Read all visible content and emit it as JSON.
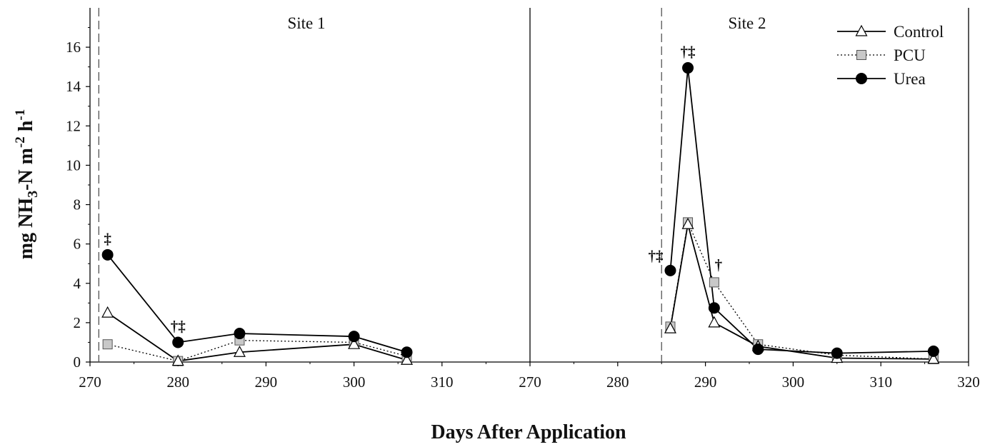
{
  "chart_data": {
    "type": "line",
    "xlabel": "Days After Application",
    "ylabel": {
      "prefix": "mg NH",
      "sub": "3",
      "mid": "-N m",
      "sup1": "-2",
      "mid2": " h",
      "sup2": "-1"
    },
    "ylim": [
      0,
      18
    ],
    "yticks": [
      "0",
      "2",
      "4",
      "6",
      "8",
      "10",
      "12",
      "14",
      "16"
    ],
    "legend": {
      "placement": "top-right",
      "entries": [
        "Control",
        "PCU",
        "Urea"
      ]
    },
    "colors": {
      "control_fill": "#ffffff",
      "pcu_fill": "#c8c8c8",
      "urea_fill": "#000000",
      "line": "#000000"
    },
    "panels": [
      {
        "label": "Site 1",
        "xlim": [
          270,
          320
        ],
        "xticks": [
          "270",
          "280",
          "290",
          "300",
          "310"
        ],
        "application_day": 271,
        "series": [
          {
            "name": "Control",
            "marker": "triangle",
            "line": "solid",
            "x": [
              272,
              280,
              287,
              300,
              306
            ],
            "y": [
              2.5,
              0.05,
              0.5,
              0.9,
              0.1
            ]
          },
          {
            "name": "PCU",
            "marker": "square",
            "line": "dotted",
            "x": [
              272,
              280,
              287,
              300,
              306
            ],
            "y": [
              0.9,
              0.05,
              1.1,
              1.0,
              0.3
            ]
          },
          {
            "name": "Urea",
            "marker": "circle",
            "line": "solid",
            "x": [
              272,
              280,
              287,
              300,
              306
            ],
            "y": [
              5.45,
              1.0,
              1.45,
              1.3,
              0.5
            ]
          }
        ],
        "annotations": [
          {
            "x": 272,
            "y": 5.45,
            "text": "‡"
          },
          {
            "x": 280,
            "y": 1.0,
            "text": "†‡"
          }
        ]
      },
      {
        "label": "Site 2",
        "xlim": [
          270,
          320
        ],
        "xticks": [
          "270",
          "280",
          "290",
          "300",
          "310",
          "320"
        ],
        "application_day": 285,
        "series": [
          {
            "name": "Control",
            "marker": "triangle",
            "line": "solid",
            "x": [
              286,
              288,
              291,
              296,
              305,
              316
            ],
            "y": [
              1.7,
              7.0,
              2.0,
              0.8,
              0.2,
              0.15
            ]
          },
          {
            "name": "PCU",
            "marker": "square",
            "line": "dotted",
            "x": [
              286,
              288,
              291,
              296,
              305,
              316
            ],
            "y": [
              1.8,
              7.1,
              4.05,
              0.9,
              0.35,
              0.15
            ]
          },
          {
            "name": "Urea",
            "marker": "circle",
            "line": "solid",
            "x": [
              286,
              288,
              291,
              296,
              305,
              316
            ],
            "y": [
              4.65,
              14.95,
              2.75,
              0.65,
              0.45,
              0.55
            ]
          }
        ],
        "annotations": [
          {
            "x": 286,
            "y": 4.65,
            "text": "†‡",
            "side": "left"
          },
          {
            "x": 288,
            "y": 14.95,
            "text": "†‡"
          },
          {
            "x": 291,
            "y": 4.05,
            "text": "†"
          }
        ]
      }
    ]
  }
}
